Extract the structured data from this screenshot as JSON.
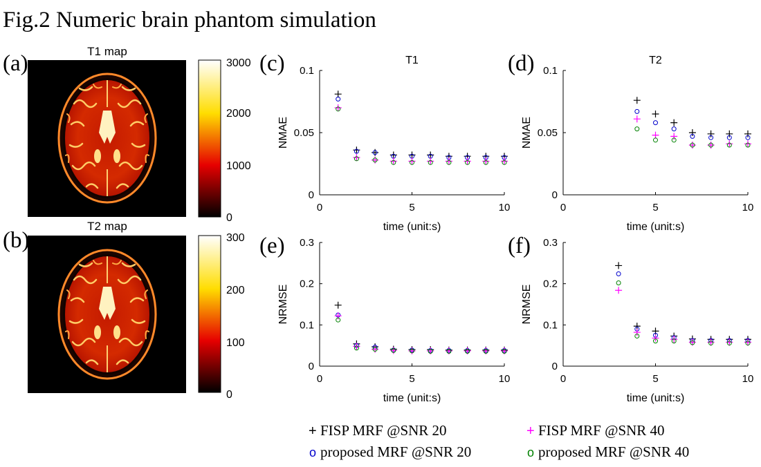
{
  "figure_title": "Fig.2 Numeric brain phantom simulation",
  "maps": [
    {
      "panel": "(a)",
      "title": "T1 map",
      "colorbar_ticks": [
        "3000",
        "2000",
        "1000",
        "0"
      ],
      "colorbar_range": [
        0,
        3000
      ]
    },
    {
      "panel": "(b)",
      "title": "T2 map",
      "colorbar_ticks": [
        "300",
        "200",
        "100",
        "0"
      ],
      "colorbar_range": [
        0,
        300
      ]
    }
  ],
  "legend": {
    "items": [
      {
        "marker": "+",
        "label": "FISP MRF @SNR 20",
        "color": "#000000"
      },
      {
        "marker": "+",
        "label": "FISP MRF @SNR 40",
        "color": "#ff00ff"
      },
      {
        "marker": "o",
        "label": "proposed MRF @SNR 20",
        "color": "#0000cc"
      },
      {
        "marker": "o",
        "label": "proposed MRF @SNR 40",
        "color": "#008000"
      }
    ]
  },
  "chart_data": [
    {
      "panel": "(c)",
      "type": "scatter",
      "title": "T1",
      "xlabel": "time (unit:s)",
      "ylabel": "NMAE",
      "xlim": [
        0,
        10
      ],
      "ylim": [
        0,
        0.1
      ],
      "xticks": [
        0,
        5,
        10
      ],
      "xtick_labels": [
        "0",
        "5",
        "10"
      ],
      "yticks": [
        0,
        0.05,
        0.1
      ],
      "ytick_labels": [
        "0",
        "0.05",
        "0.1"
      ],
      "x": [
        1,
        2,
        3,
        4,
        5,
        6,
        7,
        8,
        9,
        10
      ],
      "series": [
        {
          "name": "FISP MRF @SNR 20",
          "values": [
            0.081,
            0.036,
            0.034,
            0.032,
            0.032,
            0.032,
            0.031,
            0.031,
            0.031,
            0.031
          ]
        },
        {
          "name": "proposed MRF @SNR 20",
          "values": [
            0.077,
            0.035,
            0.034,
            0.031,
            0.031,
            0.031,
            0.03,
            0.03,
            0.03,
            0.03
          ]
        },
        {
          "name": "FISP MRF @SNR 40",
          "values": [
            0.07,
            0.03,
            0.028,
            0.027,
            0.027,
            0.027,
            0.027,
            0.027,
            0.027,
            0.027
          ]
        },
        {
          "name": "proposed MRF @SNR 40",
          "values": [
            0.069,
            0.029,
            0.028,
            0.026,
            0.026,
            0.026,
            0.026,
            0.026,
            0.026,
            0.026
          ]
        }
      ]
    },
    {
      "panel": "(d)",
      "type": "scatter",
      "title": "T2",
      "xlabel": "time (unit:s)",
      "ylabel": "NMAE",
      "xlim": [
        0,
        10
      ],
      "ylim": [
        0,
        0.1
      ],
      "xticks": [
        0,
        5,
        10
      ],
      "xtick_labels": [
        "0",
        "5",
        "10"
      ],
      "yticks": [
        0,
        0.05,
        0.1
      ],
      "ytick_labels": [
        "0",
        "0.05",
        "0.1"
      ],
      "x": [
        4,
        5,
        6,
        7,
        8,
        9,
        10
      ],
      "series": [
        {
          "name": "FISP MRF @SNR 20",
          "values": [
            0.076,
            0.065,
            0.058,
            0.05,
            0.049,
            0.049,
            0.049
          ]
        },
        {
          "name": "proposed MRF @SNR 20",
          "values": [
            0.067,
            0.058,
            0.053,
            0.047,
            0.046,
            0.046,
            0.046
          ]
        },
        {
          "name": "FISP MRF @SNR 40",
          "values": [
            0.061,
            0.048,
            0.047,
            0.04,
            0.04,
            0.041,
            0.041
          ]
        },
        {
          "name": "proposed MRF @SNR 40",
          "values": [
            0.053,
            0.044,
            0.044,
            0.04,
            0.04,
            0.04,
            0.04
          ]
        }
      ]
    },
    {
      "panel": "(e)",
      "type": "scatter",
      "title": "",
      "xlabel": "time (unit:s)",
      "ylabel": "NRMSE",
      "xlim": [
        0,
        10
      ],
      "ylim": [
        0,
        0.3
      ],
      "xticks": [
        0,
        5,
        10
      ],
      "xtick_labels": [
        "0",
        "5",
        "10"
      ],
      "yticks": [
        0,
        0.1,
        0.2,
        0.3
      ],
      "ytick_labels": [
        "0",
        "0.1",
        "0.2",
        "0.3"
      ],
      "x": [
        1,
        2,
        3,
        4,
        5,
        6,
        7,
        8,
        9,
        10
      ],
      "series": [
        {
          "name": "FISP MRF @SNR 20",
          "values": [
            0.148,
            0.054,
            0.047,
            0.041,
            0.04,
            0.04,
            0.039,
            0.039,
            0.039,
            0.039
          ]
        },
        {
          "name": "proposed MRF @SNR 20",
          "values": [
            0.124,
            0.05,
            0.046,
            0.039,
            0.039,
            0.038,
            0.038,
            0.038,
            0.038,
            0.038
          ]
        },
        {
          "name": "FISP MRF @SNR 40",
          "values": [
            0.122,
            0.048,
            0.041,
            0.038,
            0.037,
            0.037,
            0.037,
            0.037,
            0.037,
            0.037
          ]
        },
        {
          "name": "proposed MRF @SNR 40",
          "values": [
            0.112,
            0.044,
            0.041,
            0.038,
            0.037,
            0.036,
            0.036,
            0.036,
            0.036,
            0.036
          ]
        }
      ]
    },
    {
      "panel": "(f)",
      "type": "scatter",
      "title": "",
      "xlabel": "time (unit:s)",
      "ylabel": "NRMSE",
      "xlim": [
        0,
        10
      ],
      "ylim": [
        0,
        0.3
      ],
      "xticks": [
        0,
        5,
        10
      ],
      "xtick_labels": [
        "0",
        "5",
        "10"
      ],
      "yticks": [
        0,
        0.1,
        0.2,
        0.3
      ],
      "ytick_labels": [
        "0",
        "0.1",
        "0.2",
        "0.3"
      ],
      "x": [
        3,
        4,
        5,
        6,
        7,
        8,
        9,
        10
      ],
      "series": [
        {
          "name": "FISP MRF @SNR 20",
          "values": [
            0.244,
            0.097,
            0.085,
            0.073,
            0.066,
            0.065,
            0.065,
            0.065
          ]
        },
        {
          "name": "proposed MRF @SNR 20",
          "values": [
            0.224,
            0.09,
            0.075,
            0.069,
            0.062,
            0.062,
            0.062,
            0.062
          ]
        },
        {
          "name": "FISP MRF @SNR 40",
          "values": [
            0.184,
            0.082,
            0.068,
            0.065,
            0.058,
            0.058,
            0.058,
            0.058
          ]
        },
        {
          "name": "proposed MRF @SNR 40",
          "values": [
            0.202,
            0.073,
            0.061,
            0.061,
            0.057,
            0.056,
            0.056,
            0.056
          ]
        }
      ]
    }
  ]
}
